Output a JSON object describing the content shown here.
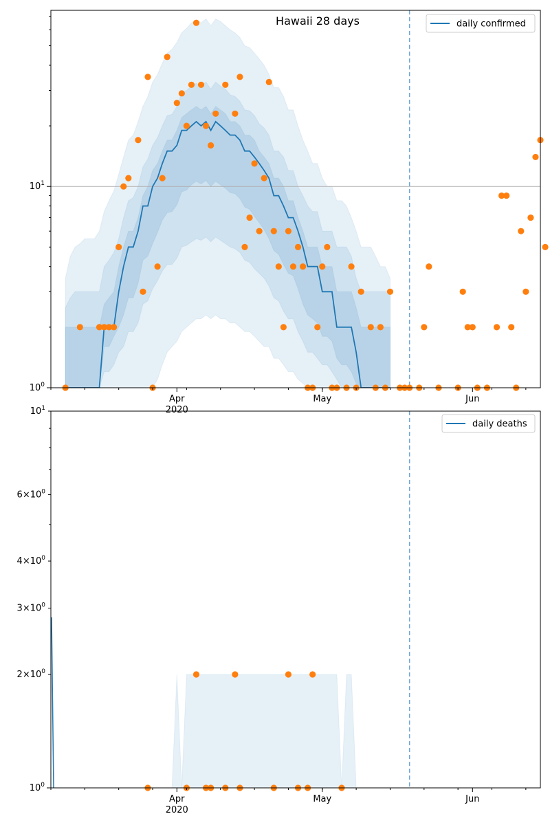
{
  "chart_data": [
    {
      "type": "line",
      "title": "Hawaii 28 days",
      "y_scale": "log",
      "ylim": [
        1,
        75
      ],
      "xlim": [
        "2020-03-06",
        "2020-06-15"
      ],
      "x_tick_labels": [
        {
          "date": "2020-04-01",
          "label": "Apr",
          "sublabel": "2020"
        },
        {
          "date": "2020-05-01",
          "label": "May"
        },
        {
          "date": "2020-06-01",
          "label": "Jun"
        }
      ],
      "y_tick_labels": [
        {
          "value": 1,
          "label": "10^0"
        },
        {
          "value": 10,
          "label": "10^1"
        }
      ],
      "reference_line_y": 10,
      "vertical_line_date": "2020-05-19",
      "legend": {
        "position": "top-right",
        "entries": [
          "daily confirmed"
        ]
      },
      "colors": {
        "line": "#1f77b4",
        "points": "#ff7f0e",
        "band": "#1f77b4",
        "vline": "#6fa8dc"
      },
      "x_start": "2020-03-09",
      "median": [
        1,
        1,
        1,
        1,
        1,
        1,
        1,
        1,
        2,
        2,
        2,
        3,
        4,
        5,
        5,
        6,
        8,
        8,
        10,
        11,
        13,
        15,
        15,
        16,
        19,
        19,
        20,
        21,
        20,
        21,
        19,
        21,
        20,
        19,
        18,
        18,
        17,
        15,
        15,
        14,
        13,
        12,
        11,
        9,
        9,
        8,
        7,
        7,
        6,
        5,
        4,
        4,
        4,
        3,
        3,
        3,
        2,
        2,
        2,
        2,
        1.5,
        1,
        1,
        1,
        1,
        1,
        1,
        1
      ],
      "band_inner": {
        "lower": [
          1,
          1,
          1,
          1,
          1,
          1,
          1,
          1,
          1.6,
          1.6,
          1.8,
          2,
          2.3,
          2.8,
          2.8,
          3.3,
          4.3,
          4.5,
          5.2,
          5.9,
          6.8,
          7.4,
          7.5,
          8.1,
          9.4,
          9.6,
          10.2,
          10.6,
          10.3,
          10.7,
          10,
          10.6,
          10.2,
          9.8,
          9.3,
          9.2,
          8.7,
          7.9,
          7.7,
          7.1,
          6.6,
          6.1,
          5.5,
          4.8,
          4.6,
          4.1,
          3.7,
          3.6,
          3.1,
          2.6,
          2.3,
          2.2,
          2.1,
          1.8,
          1.8,
          1.7,
          1.4,
          1.3,
          1.3,
          1.2,
          1.05,
          1,
          1,
          1,
          1,
          1,
          1,
          1
        ],
        "upper": [
          2,
          2,
          2,
          2,
          2,
          2,
          2,
          2,
          2.6,
          2.8,
          3,
          4,
          5,
          6,
          6,
          7,
          9,
          10,
          12,
          13,
          15,
          17,
          17,
          19,
          22,
          23,
          24,
          25,
          24,
          25,
          23,
          25,
          24,
          23,
          21,
          21,
          20,
          18,
          18,
          17,
          15,
          14,
          13,
          11,
          11,
          10,
          8.5,
          8.5,
          7,
          6,
          5,
          5,
          5,
          4,
          4,
          4,
          3,
          3,
          3,
          3,
          2.5,
          2,
          2,
          2,
          2,
          2,
          2,
          2
        ]
      },
      "band_mid": {
        "lower": [
          1,
          1,
          1,
          1,
          1,
          1,
          1,
          1,
          1.2,
          1.2,
          1.3,
          1.5,
          1.6,
          1.9,
          1.9,
          2.1,
          2.6,
          2.7,
          3.1,
          3.4,
          3.8,
          4.1,
          4.1,
          4.4,
          5,
          5.1,
          5.3,
          5.5,
          5.4,
          5.6,
          5.3,
          5.6,
          5.4,
          5.2,
          5,
          4.9,
          4.7,
          4.3,
          4.2,
          3.9,
          3.7,
          3.5,
          3.2,
          2.8,
          2.7,
          2.4,
          2.2,
          2.2,
          1.9,
          1.7,
          1.5,
          1.5,
          1.4,
          1.3,
          1.3,
          1.2,
          1.1,
          1,
          1,
          1,
          1,
          1,
          1,
          1,
          1,
          1,
          1,
          1
        ],
        "upper": [
          2.5,
          2.8,
          3,
          3,
          3,
          3,
          3,
          3,
          4,
          4.3,
          4.7,
          5.5,
          7,
          8.5,
          8.8,
          10,
          12.5,
          13.7,
          16,
          17.5,
          20,
          22.5,
          22.8,
          25,
          29,
          30,
          31.5,
          32.5,
          31.5,
          33,
          30.5,
          33,
          31.5,
          30.5,
          28.5,
          28,
          26.5,
          24,
          23.8,
          22.5,
          20.5,
          19.5,
          18,
          15,
          15,
          14,
          12,
          12,
          10,
          9,
          8,
          7.5,
          7.5,
          6,
          6,
          6,
          5,
          5,
          5,
          4.5,
          3.5,
          3,
          3,
          3,
          3,
          3,
          3,
          3
        ]
      },
      "band_outer": {
        "lower": [
          1,
          1,
          1,
          1,
          1,
          1,
          1,
          1,
          1,
          1,
          1,
          1,
          1,
          1,
          1,
          1,
          1,
          1,
          1,
          1.1,
          1.3,
          1.5,
          1.6,
          1.7,
          1.9,
          2,
          2.1,
          2.2,
          2.2,
          2.3,
          2.2,
          2.3,
          2.2,
          2.2,
          2.1,
          2.1,
          2,
          1.9,
          1.9,
          1.8,
          1.7,
          1.6,
          1.6,
          1.4,
          1.4,
          1.3,
          1.2,
          1.2,
          1.1,
          1.05,
          1,
          1,
          1,
          1,
          1,
          1,
          1,
          1,
          1,
          1,
          1,
          1,
          1,
          1,
          1,
          1,
          1,
          1
        ],
        "upper": [
          3.5,
          4.5,
          5,
          5.2,
          5.5,
          5.5,
          5.5,
          6,
          7.5,
          8.5,
          9.5,
          11.5,
          14,
          17,
          18,
          21,
          25,
          28,
          33,
          36,
          41,
          46,
          48,
          52,
          58,
          61,
          65,
          67,
          65,
          68,
          63,
          68,
          66,
          63,
          60,
          58,
          55,
          50,
          49,
          46,
          43,
          40,
          36,
          31,
          31,
          28,
          24,
          24,
          20,
          17,
          15,
          13,
          13,
          11,
          10,
          10,
          8.5,
          8.5,
          8,
          7,
          6,
          5,
          5,
          5,
          4.5,
          4,
          4,
          3.5
        ]
      },
      "points": [
        {
          "date": "2020-03-09",
          "value": 1
        },
        {
          "date": "2020-03-12",
          "value": 2
        },
        {
          "date": "2020-03-16",
          "value": 2
        },
        {
          "date": "2020-03-17",
          "value": 2
        },
        {
          "date": "2020-03-18",
          "value": 2
        },
        {
          "date": "2020-03-19",
          "value": 2
        },
        {
          "date": "2020-03-20",
          "value": 5
        },
        {
          "date": "2020-03-21",
          "value": 10
        },
        {
          "date": "2020-03-22",
          "value": 11
        },
        {
          "date": "2020-03-24",
          "value": 17
        },
        {
          "date": "2020-03-25",
          "value": 3
        },
        {
          "date": "2020-03-26",
          "value": 35
        },
        {
          "date": "2020-03-27",
          "value": 1
        },
        {
          "date": "2020-03-28",
          "value": 4
        },
        {
          "date": "2020-03-29",
          "value": 11
        },
        {
          "date": "2020-03-30",
          "value": 44
        },
        {
          "date": "2020-04-01",
          "value": 26
        },
        {
          "date": "2020-04-02",
          "value": 29
        },
        {
          "date": "2020-04-03",
          "value": 20
        },
        {
          "date": "2020-04-04",
          "value": 32
        },
        {
          "date": "2020-04-05",
          "value": 65
        },
        {
          "date": "2020-04-06",
          "value": 32
        },
        {
          "date": "2020-04-07",
          "value": 20
        },
        {
          "date": "2020-04-08",
          "value": 16
        },
        {
          "date": "2020-04-09",
          "value": 23
        },
        {
          "date": "2020-04-11",
          "value": 32
        },
        {
          "date": "2020-04-13",
          "value": 23
        },
        {
          "date": "2020-04-14",
          "value": 35
        },
        {
          "date": "2020-04-15",
          "value": 5
        },
        {
          "date": "2020-04-16",
          "value": 7
        },
        {
          "date": "2020-04-17",
          "value": 13
        },
        {
          "date": "2020-04-18",
          "value": 6
        },
        {
          "date": "2020-04-19",
          "value": 11
        },
        {
          "date": "2020-04-20",
          "value": 33
        },
        {
          "date": "2020-04-21",
          "value": 6
        },
        {
          "date": "2020-04-22",
          "value": 4
        },
        {
          "date": "2020-04-23",
          "value": 2
        },
        {
          "date": "2020-04-24",
          "value": 6
        },
        {
          "date": "2020-04-25",
          "value": 4
        },
        {
          "date": "2020-04-26",
          "value": 5
        },
        {
          "date": "2020-04-27",
          "value": 4
        },
        {
          "date": "2020-04-28",
          "value": 1
        },
        {
          "date": "2020-04-29",
          "value": 1
        },
        {
          "date": "2020-04-30",
          "value": 2
        },
        {
          "date": "2020-05-01",
          "value": 4
        },
        {
          "date": "2020-05-02",
          "value": 5
        },
        {
          "date": "2020-05-03",
          "value": 1
        },
        {
          "date": "2020-05-04",
          "value": 1
        },
        {
          "date": "2020-05-06",
          "value": 1
        },
        {
          "date": "2020-05-07",
          "value": 4
        },
        {
          "date": "2020-05-08",
          "value": 1
        },
        {
          "date": "2020-05-09",
          "value": 3
        },
        {
          "date": "2020-05-11",
          "value": 2
        },
        {
          "date": "2020-05-12",
          "value": 1
        },
        {
          "date": "2020-05-13",
          "value": 2
        },
        {
          "date": "2020-05-14",
          "value": 1
        },
        {
          "date": "2020-05-15",
          "value": 3
        },
        {
          "date": "2020-05-17",
          "value": 1
        },
        {
          "date": "2020-05-18",
          "value": 1
        },
        {
          "date": "2020-05-19",
          "value": 1
        },
        {
          "date": "2020-05-21",
          "value": 1
        },
        {
          "date": "2020-05-22",
          "value": 2
        },
        {
          "date": "2020-05-23",
          "value": 4
        },
        {
          "date": "2020-05-25",
          "value": 1
        },
        {
          "date": "2020-05-29",
          "value": 1
        },
        {
          "date": "2020-05-30",
          "value": 3
        },
        {
          "date": "2020-05-31",
          "value": 2
        },
        {
          "date": "2020-06-01",
          "value": 2
        },
        {
          "date": "2020-06-02",
          "value": 1
        },
        {
          "date": "2020-06-04",
          "value": 1
        },
        {
          "date": "2020-06-06",
          "value": 2
        },
        {
          "date": "2020-06-07",
          "value": 9
        },
        {
          "date": "2020-06-08",
          "value": 9
        },
        {
          "date": "2020-06-09",
          "value": 2
        },
        {
          "date": "2020-06-10",
          "value": 1
        },
        {
          "date": "2020-06-11",
          "value": 6
        },
        {
          "date": "2020-06-12",
          "value": 3
        },
        {
          "date": "2020-06-13",
          "value": 7
        },
        {
          "date": "2020-06-14",
          "value": 14
        },
        {
          "date": "2020-06-15",
          "value": 17
        },
        {
          "date": "2020-06-16",
          "value": 5
        }
      ]
    },
    {
      "type": "line",
      "title": "",
      "y_scale": "log",
      "ylim": [
        1,
        10
      ],
      "xlim": [
        "2020-03-06",
        "2020-06-15"
      ],
      "x_tick_labels": [
        {
          "date": "2020-04-01",
          "label": "Apr",
          "sublabel": "2020"
        },
        {
          "date": "2020-05-01",
          "label": "May"
        },
        {
          "date": "2020-06-01",
          "label": "Jun"
        }
      ],
      "y_tick_labels": [
        {
          "value": 2,
          "label": "2×10^0"
        },
        {
          "value": 3,
          "label": "3×10^0"
        },
        {
          "value": 4,
          "label": "4×10^0"
        },
        {
          "value": 6,
          "label": "6×10^0"
        },
        {
          "value": 10,
          "label": "10^1"
        }
      ],
      "vertical_line_date": "2020-05-19",
      "legend": {
        "position": "top-right",
        "entries": [
          "daily deaths"
        ]
      },
      "colors": {
        "line": "#1f77b4",
        "points": "#ff7f0e",
        "band": "#1f77b4",
        "vline": "#6fa8dc"
      },
      "band": [
        {
          "date": "2020-03-31",
          "lower": 1,
          "upper": 1
        },
        {
          "date": "2020-04-01",
          "lower": 1,
          "upper": 2
        },
        {
          "date": "2020-04-02",
          "lower": 1,
          "upper": 1
        },
        {
          "date": "2020-04-03",
          "lower": 1,
          "upper": 2
        },
        {
          "date": "2020-05-04",
          "lower": 1,
          "upper": 2
        },
        {
          "date": "2020-05-05",
          "lower": 1,
          "upper": 1
        },
        {
          "date": "2020-05-06",
          "lower": 1,
          "upper": 2
        },
        {
          "date": "2020-05-07",
          "lower": 1,
          "upper": 2
        },
        {
          "date": "2020-05-08",
          "lower": 1,
          "upper": 1
        }
      ],
      "points": [
        {
          "date": "2020-03-26",
          "value": 1
        },
        {
          "date": "2020-04-03",
          "value": 1
        },
        {
          "date": "2020-04-05",
          "value": 2
        },
        {
          "date": "2020-04-07",
          "value": 1
        },
        {
          "date": "2020-04-08",
          "value": 1
        },
        {
          "date": "2020-04-11",
          "value": 1
        },
        {
          "date": "2020-04-13",
          "value": 2
        },
        {
          "date": "2020-04-14",
          "value": 1
        },
        {
          "date": "2020-04-21",
          "value": 1
        },
        {
          "date": "2020-04-24",
          "value": 2
        },
        {
          "date": "2020-04-26",
          "value": 1
        },
        {
          "date": "2020-04-28",
          "value": 1
        },
        {
          "date": "2020-04-29",
          "value": 2
        },
        {
          "date": "2020-05-05",
          "value": 1
        }
      ]
    }
  ]
}
